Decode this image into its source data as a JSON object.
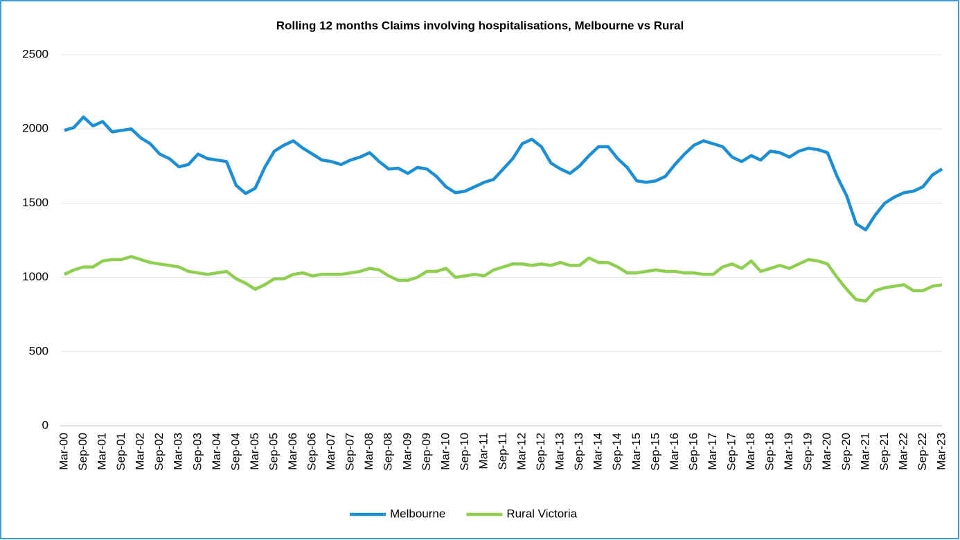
{
  "chart_data": {
    "type": "line",
    "title": "Rolling 12 months Claims involving hospitalisations, Melbourne vs Rural",
    "categories": [
      "Mar-00",
      null,
      "Sep-00",
      null,
      "Mar-01",
      null,
      "Sep-01",
      null,
      "Mar-02",
      null,
      "Sep-02",
      null,
      "Mar-03",
      null,
      "Sep-03",
      null,
      "Mar-04",
      null,
      "Sep-04",
      null,
      "Mar-05",
      null,
      "Sep-05",
      null,
      "Mar-06",
      null,
      "Sep-06",
      null,
      "Mar-07",
      null,
      "Sep-07",
      null,
      "Mar-08",
      null,
      "Sep-08",
      null,
      "Mar-09",
      null,
      "Sep-09",
      null,
      "Mar-10",
      null,
      "Sep-10",
      null,
      "Mar-11",
      null,
      "Sep-11",
      null,
      "Mar-12",
      null,
      "Sep-12",
      null,
      "Mar-13",
      null,
      "Sep-13",
      null,
      "Mar-14",
      null,
      "Sep-14",
      null,
      "Mar-15",
      null,
      "Sep-15",
      null,
      "Mar-16",
      null,
      "Sep-16",
      null,
      "Mar-17",
      null,
      "Sep-17",
      null,
      "Mar-18",
      null,
      "Sep-18",
      null,
      "Mar-19",
      null,
      "Sep-19",
      null,
      "Mar-20",
      null,
      "Sep-20",
      null,
      "Mar-21",
      null,
      "Sep-21",
      null,
      "Mar-22",
      null,
      "Sep-22",
      null,
      "Mar-23"
    ],
    "series": [
      {
        "name": "Melbourne",
        "color": "#1b8fd6",
        "values": [
          1990,
          2010,
          2080,
          2020,
          2050,
          1980,
          1990,
          2000,
          1940,
          1900,
          1830,
          1800,
          1745,
          1760,
          1830,
          1800,
          1790,
          1780,
          1620,
          1565,
          1600,
          1740,
          1850,
          1890,
          1920,
          1870,
          1830,
          1790,
          1780,
          1760,
          1790,
          1810,
          1840,
          1780,
          1730,
          1735,
          1700,
          1740,
          1730,
          1680,
          1610,
          1570,
          1580,
          1610,
          1640,
          1660,
          1730,
          1800,
          1900,
          1930,
          1880,
          1770,
          1730,
          1700,
          1750,
          1820,
          1880,
          1880,
          1800,
          1740,
          1650,
          1640,
          1650,
          1680,
          1760,
          1830,
          1890,
          1920,
          1900,
          1880,
          1810,
          1780,
          1820,
          1790,
          1850,
          1840,
          1810,
          1850,
          1870,
          1860,
          1840,
          1680,
          1550,
          1360,
          1320,
          1420,
          1500,
          1540,
          1570,
          1580,
          1610,
          1690,
          1730
        ]
      },
      {
        "name": "Rural Victoria",
        "color": "#8fcf4f",
        "values": [
          1020,
          1050,
          1070,
          1070,
          1110,
          1120,
          1120,
          1140,
          1120,
          1100,
          1090,
          1080,
          1070,
          1040,
          1030,
          1020,
          1030,
          1040,
          990,
          960,
          920,
          950,
          990,
          990,
          1020,
          1030,
          1010,
          1020,
          1020,
          1020,
          1030,
          1040,
          1060,
          1050,
          1010,
          980,
          980,
          1000,
          1040,
          1040,
          1060,
          1000,
          1010,
          1020,
          1010,
          1050,
          1070,
          1090,
          1090,
          1080,
          1090,
          1080,
          1100,
          1080,
          1080,
          1130,
          1100,
          1100,
          1070,
          1030,
          1030,
          1040,
          1050,
          1040,
          1040,
          1030,
          1030,
          1020,
          1020,
          1070,
          1090,
          1060,
          1110,
          1040,
          1060,
          1080,
          1060,
          1090,
          1120,
          1110,
          1090,
          1000,
          920,
          850,
          840,
          910,
          930,
          940,
          950,
          910,
          910,
          940,
          950
        ]
      }
    ],
    "ylim": [
      0,
      2500
    ],
    "yticks": [
      0,
      500,
      1000,
      1500,
      2000,
      2500
    ],
    "grid": true,
    "legend": "bottom"
  }
}
